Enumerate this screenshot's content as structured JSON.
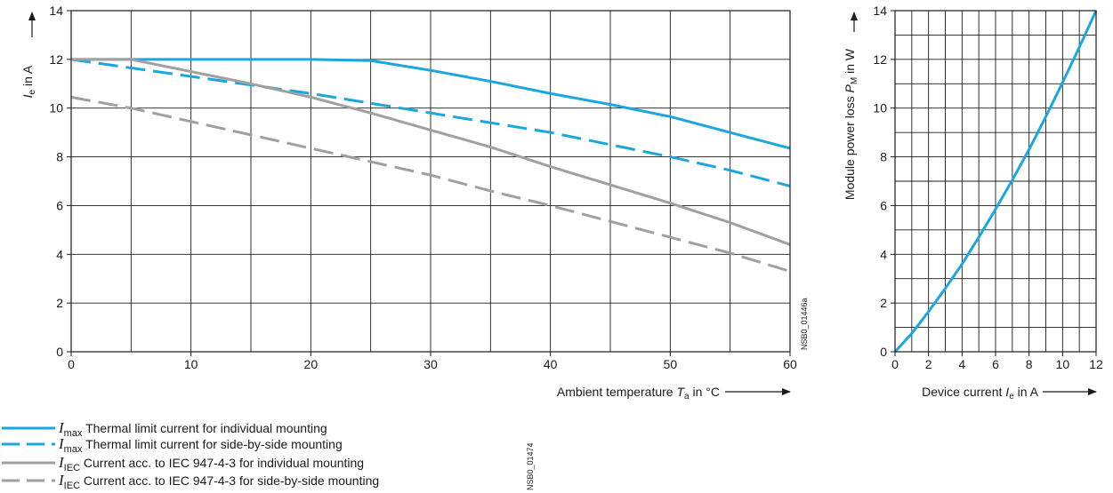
{
  "colors": {
    "cyan": "#1aa7e0",
    "gray": "#a0a0a0",
    "grid": "#1a1a1a",
    "axis": "#1a1a1a"
  },
  "chart_data": [
    {
      "type": "line",
      "ylabel_symbol": "I",
      "ylabel_sub": "e",
      "ylabel_rest": " in A",
      "xlabel_main": "Ambient temperature ",
      "xlabel_symbol": "T",
      "xlabel_sub": "a",
      "xlabel_rest": " in °C",
      "xlim": [
        0,
        60
      ],
      "ylim": [
        0,
        14
      ],
      "x_ticks": [
        0,
        10,
        20,
        30,
        40,
        50,
        60
      ],
      "x_tick_labels": [
        "0",
        "10",
        "20",
        "30",
        "40",
        "50",
        "60"
      ],
      "y_ticks": [
        0,
        2,
        4,
        6,
        8,
        10,
        12,
        14
      ],
      "y_tick_labels": [
        "0",
        "2",
        "4",
        "6",
        "8",
        "10",
        "12",
        "14"
      ],
      "x_grid_step": 5,
      "y_grid_step": 2,
      "grid": true,
      "ref_code": "NSB0_01446a",
      "series": [
        {
          "id": "imax-individual",
          "color": "cyan",
          "dash": false,
          "points": [
            [
              0,
              12
            ],
            [
              5,
              12
            ],
            [
              10,
              12
            ],
            [
              15,
              12
            ],
            [
              20,
              12
            ],
            [
              25,
              11.95
            ],
            [
              30,
              11.55
            ],
            [
              35,
              11.1
            ],
            [
              40,
              10.6
            ],
            [
              45,
              10.15
            ],
            [
              50,
              9.65
            ],
            [
              55,
              9.0
            ],
            [
              60,
              8.35
            ]
          ]
        },
        {
          "id": "imax-side-by-side",
          "color": "cyan",
          "dash": true,
          "points": [
            [
              0,
              12
            ],
            [
              5,
              11.65
            ],
            [
              10,
              11.3
            ],
            [
              15,
              10.95
            ],
            [
              20,
              10.6
            ],
            [
              25,
              10.2
            ],
            [
              30,
              9.8
            ],
            [
              35,
              9.4
            ],
            [
              40,
              9.0
            ],
            [
              45,
              8.5
            ],
            [
              50,
              8.0
            ],
            [
              55,
              7.45
            ],
            [
              60,
              6.8
            ]
          ]
        },
        {
          "id": "iiec-individual",
          "color": "gray",
          "dash": false,
          "points": [
            [
              0,
              12
            ],
            [
              5,
              12
            ],
            [
              10,
              11.5
            ],
            [
              15,
              11.0
            ],
            [
              20,
              10.45
            ],
            [
              25,
              9.8
            ],
            [
              30,
              9.1
            ],
            [
              35,
              8.4
            ],
            [
              40,
              7.6
            ],
            [
              45,
              6.85
            ],
            [
              50,
              6.1
            ],
            [
              55,
              5.3
            ],
            [
              60,
              4.4
            ]
          ]
        },
        {
          "id": "iiec-side-by-side",
          "color": "gray",
          "dash": true,
          "points": [
            [
              0,
              10.45
            ],
            [
              5,
              10.0
            ],
            [
              10,
              9.45
            ],
            [
              15,
              8.9
            ],
            [
              20,
              8.35
            ],
            [
              25,
              7.8
            ],
            [
              30,
              7.25
            ],
            [
              35,
              6.6
            ],
            [
              40,
              6.0
            ],
            [
              45,
              5.35
            ],
            [
              50,
              4.7
            ],
            [
              55,
              4.05
            ],
            [
              60,
              3.3
            ]
          ]
        }
      ]
    },
    {
      "type": "line",
      "ylabel_main": "Module power loss ",
      "ylabel_symbol": "P",
      "ylabel_sub": "M",
      "ylabel_rest": " in W",
      "xlabel_main": "Device current  ",
      "xlabel_symbol": "I",
      "xlabel_sub": "e",
      "xlabel_rest": " in A",
      "xlim": [
        0,
        12
      ],
      "ylim": [
        0,
        14
      ],
      "x_ticks": [
        0,
        2,
        4,
        6,
        8,
        10,
        12
      ],
      "x_tick_labels": [
        "0",
        "2",
        "4",
        "6",
        "8",
        "10",
        "12"
      ],
      "y_ticks": [
        0,
        2,
        4,
        6,
        8,
        10,
        12,
        14
      ],
      "y_tick_labels": [
        "0",
        "2",
        "4",
        "6",
        "8",
        "10",
        "12",
        "14"
      ],
      "x_grid_step": 1,
      "y_grid_step": 1,
      "grid": true,
      "series": [
        {
          "id": "module-power-loss",
          "color": "cyan",
          "dash": false,
          "points": [
            [
              0,
              0
            ],
            [
              1,
              0.75
            ],
            [
              2,
              1.65
            ],
            [
              3,
              2.6
            ],
            [
              4,
              3.6
            ],
            [
              5,
              4.7
            ],
            [
              6,
              5.85
            ],
            [
              7,
              7.05
            ],
            [
              8,
              8.3
            ],
            [
              9,
              9.65
            ],
            [
              10,
              11.05
            ],
            [
              11,
              12.5
            ],
            [
              12,
              14.0
            ]
          ]
        }
      ]
    }
  ],
  "legend": [
    {
      "symbol": "I",
      "sub": "max",
      "text": " Thermal limit current for individual mounting",
      "color": "cyan",
      "dash": false
    },
    {
      "symbol": "I",
      "sub": "max",
      "text": " Thermal limit current for side-by-side mounting",
      "color": "cyan",
      "dash": true
    },
    {
      "symbol": "I",
      "sub": "IEC",
      "text": "  Current acc. to IEC 947-4-3 for individual mounting",
      "color": "gray",
      "dash": false
    },
    {
      "symbol": "I",
      "sub": "IEC",
      "text": "  Current acc. to IEC 947-4-3 for side-by-side mounting",
      "color": "gray",
      "dash": true
    }
  ],
  "legend_ref_code": "NSB0_01474"
}
